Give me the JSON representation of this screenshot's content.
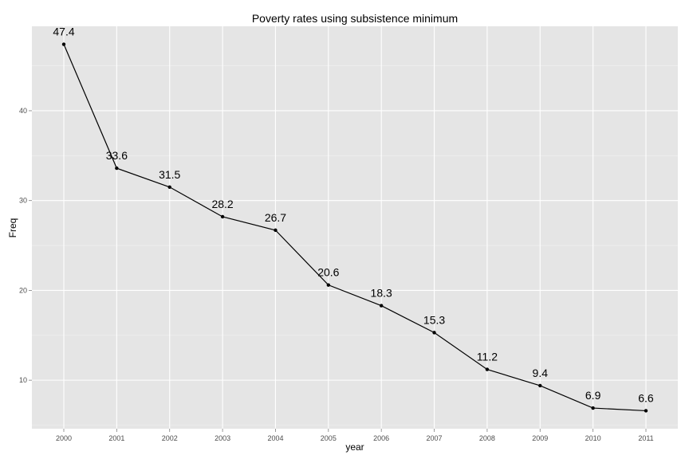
{
  "chart_data": {
    "type": "line",
    "title": "Poverty rates using subsistence minimum",
    "xlabel": "year",
    "ylabel": "Freq",
    "categories": [
      "2000",
      "2001",
      "2002",
      "2003",
      "2004",
      "2005",
      "2006",
      "2007",
      "2008",
      "2009",
      "2010",
      "2011"
    ],
    "series": [
      {
        "values": [
          47.4,
          33.6,
          31.5,
          28.2,
          26.7,
          20.6,
          18.3,
          15.3,
          11.2,
          9.4,
          6.9,
          6.6
        ],
        "value_labels": [
          "47.4",
          "33.6",
          "31.5",
          "28.2",
          "26.7",
          "20.6",
          "18.3",
          "15.3",
          "11.2",
          "9.4",
          "6.9",
          "6.6"
        ]
      }
    ],
    "yticks": [
      10,
      20,
      30,
      40
    ],
    "ytick_labels": [
      "10",
      "20",
      "30",
      "40"
    ],
    "ylim": [
      4.6,
      49.4
    ],
    "grid": true,
    "legend": "none",
    "colors": {
      "panel_background": "#e5e5e5",
      "grid_major": "#ffffff",
      "grid_minor": "#f2f2f2",
      "line": "#000000",
      "point": "#000000",
      "tick_text": "#4d4d4d"
    }
  }
}
